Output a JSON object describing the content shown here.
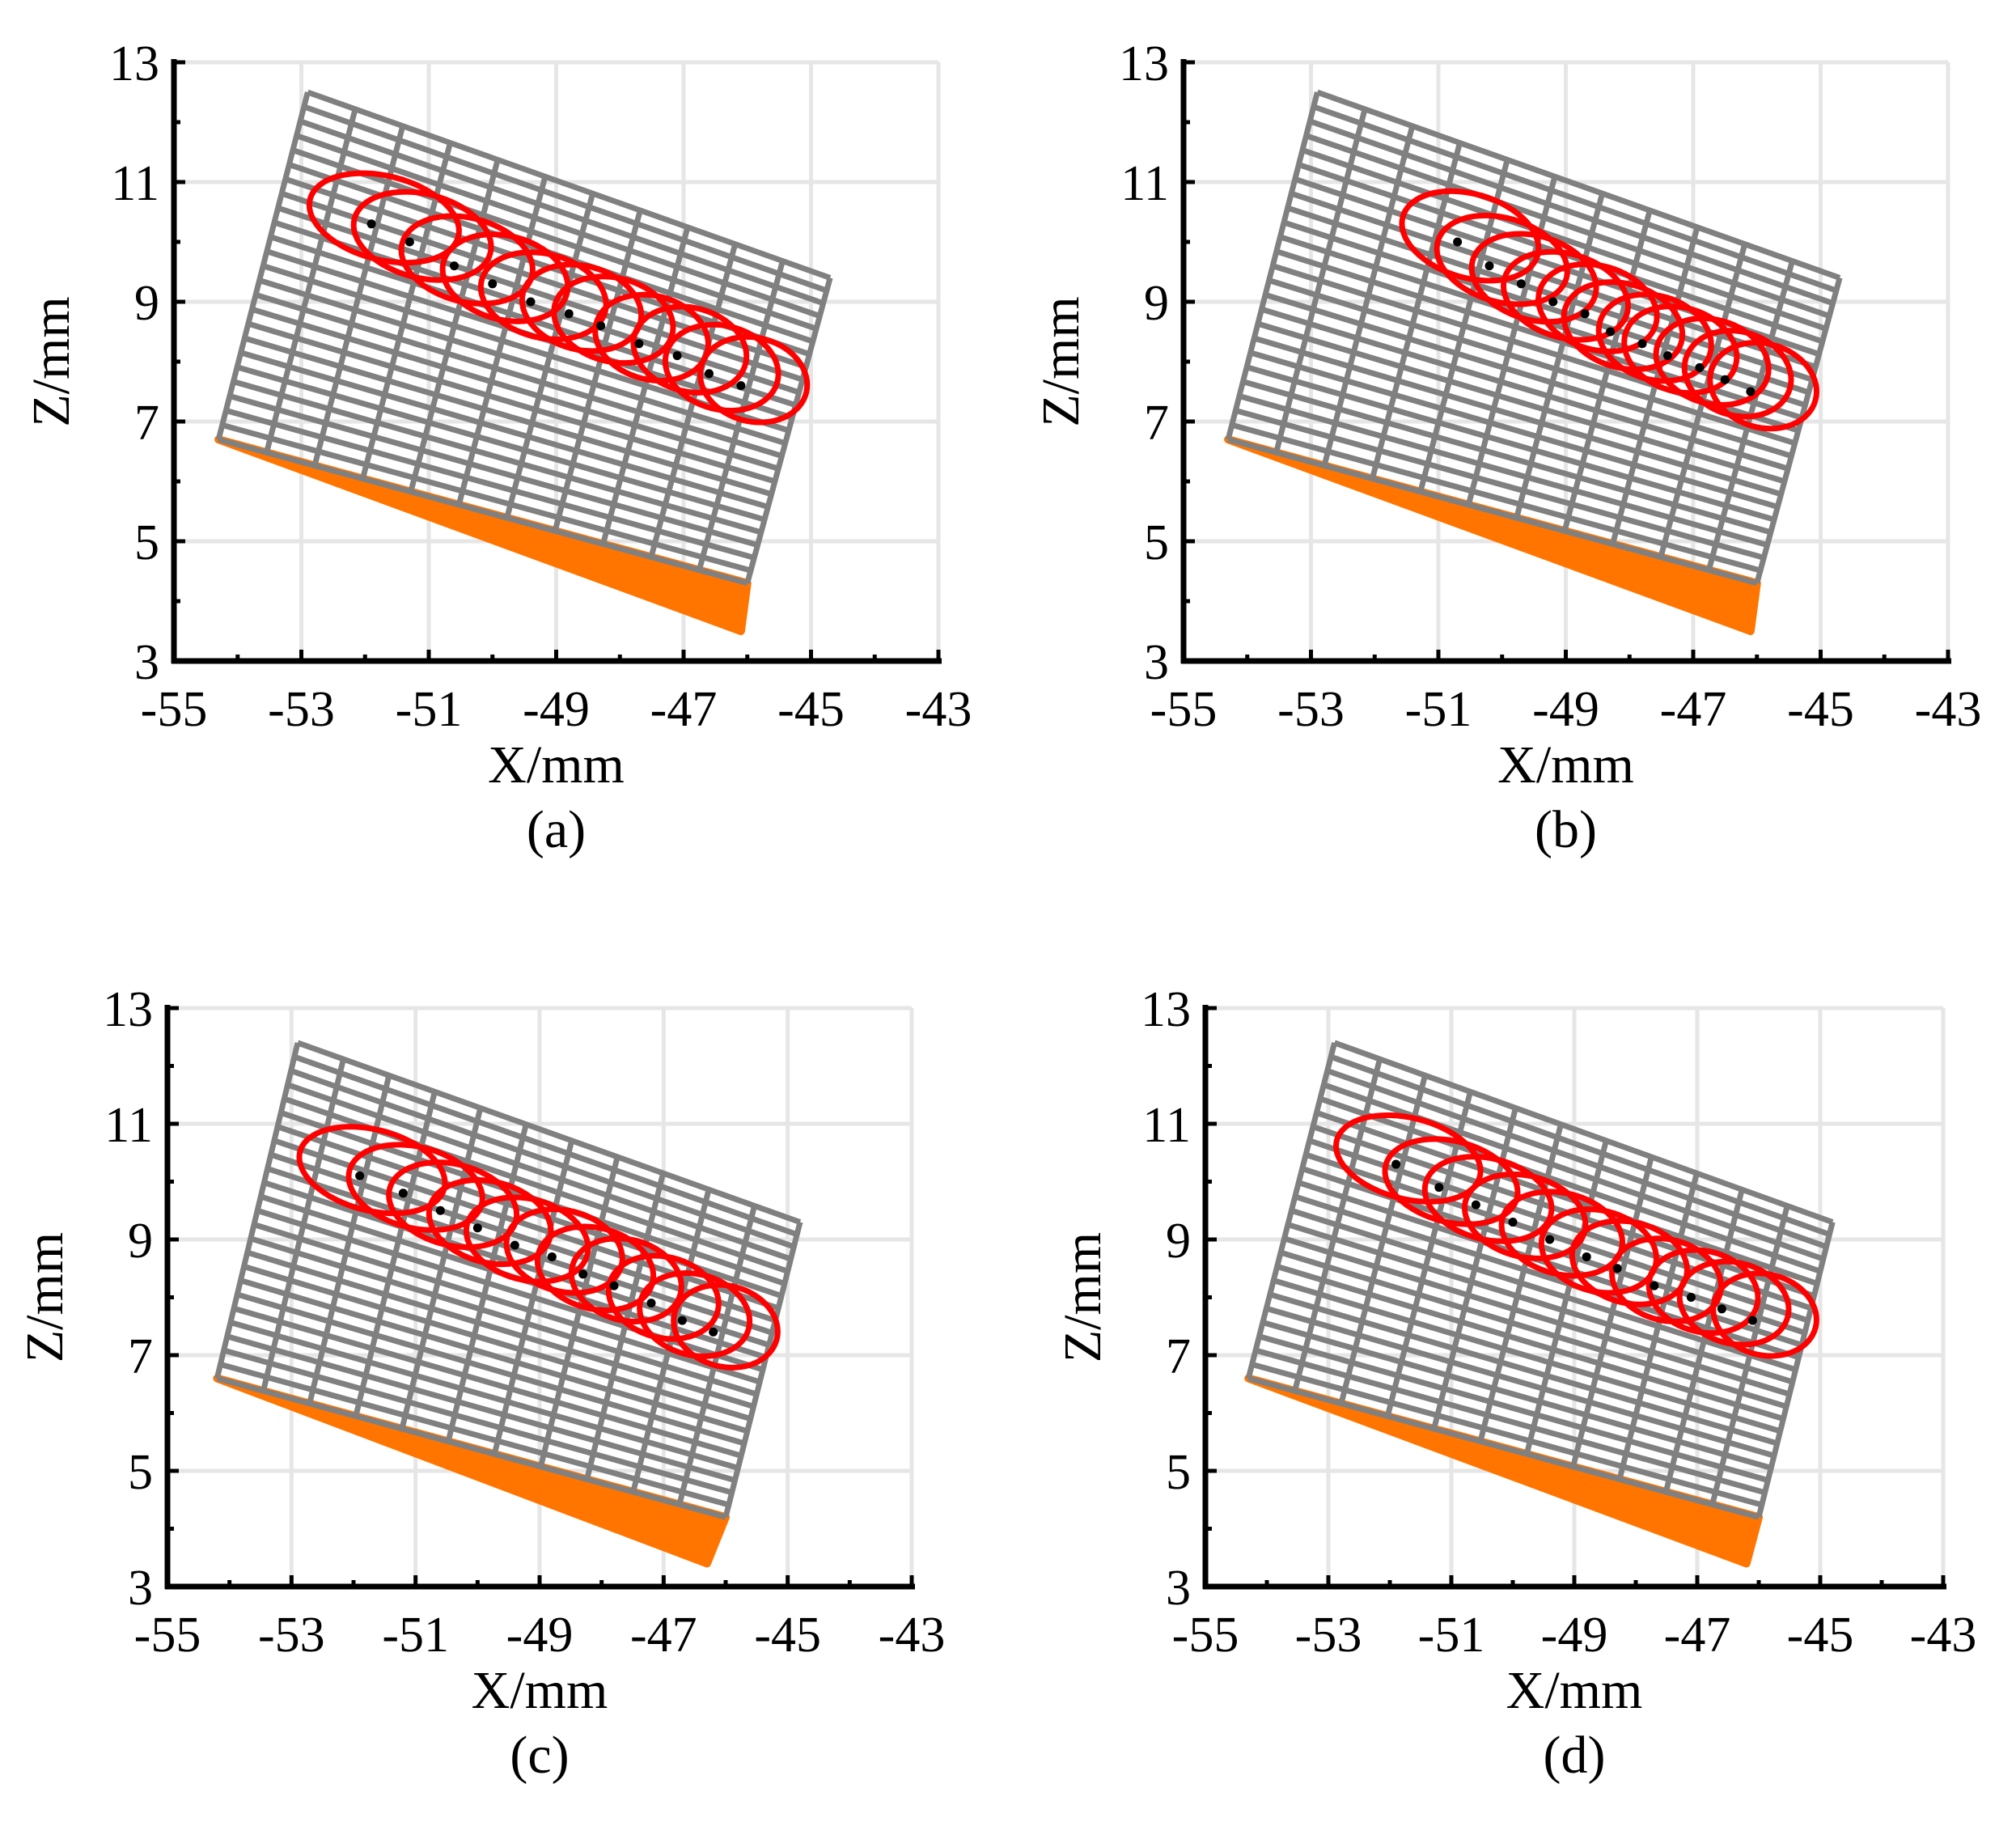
{
  "figure": {
    "colors": {
      "grid": "#e6e6e6",
      "mesh": "#808080",
      "ellipse": "#ff0000",
      "substrate": "#ff7500",
      "point": "#000000",
      "axis": "#000000"
    }
  },
  "chart_data": [
    {
      "panel": "a",
      "type": "scatter",
      "caption": "(a)",
      "xlabel": "X/mm",
      "ylabel": "Z/mm",
      "xlim": [
        -55,
        -43
      ],
      "ylim": [
        3,
        13
      ],
      "xticks": [
        "-55",
        "-53",
        "-51",
        "-49",
        "-47",
        "-45",
        "-43"
      ],
      "yticks": [
        "3",
        "5",
        "7",
        "9",
        "11",
        "13"
      ],
      "grid": true,
      "mesh": {
        "corners": [
          [
            -52.9,
            12.5
          ],
          [
            -44.7,
            9.4
          ],
          [
            -46.0,
            4.3
          ],
          [
            -54.3,
            6.7
          ]
        ],
        "rows": 24,
        "cols": 11
      },
      "substrate": [
        [
          -54.3,
          6.7
        ],
        [
          -46.0,
          4.3
        ],
        [
          -46.1,
          3.5
        ]
      ],
      "series": [
        {
          "name": "ellipse centers",
          "x": [
            -51.9,
            -51.3,
            -50.6,
            -50.0,
            -49.4,
            -48.8,
            -48.3,
            -47.7,
            -47.1,
            -46.6,
            -46.1
          ],
          "y": [
            10.3,
            10.0,
            9.6,
            9.3,
            9.0,
            8.8,
            8.6,
            8.3,
            8.1,
            7.8,
            7.6
          ]
        }
      ],
      "ellipses": {
        "rx": [
          1.2,
          1.1,
          1.05,
          1.0,
          1.0,
          0.95,
          0.95,
          0.9,
          0.9,
          0.9,
          0.85
        ],
        "ry": 0.7,
        "offset": [
          0.2,
          0.1
        ]
      }
    },
    {
      "panel": "b",
      "type": "scatter",
      "caption": "(b)",
      "xlabel": "X/mm",
      "ylabel": "Z/mm",
      "xlim": [
        -55,
        -43
      ],
      "ylim": [
        3,
        13
      ],
      "xticks": [
        "-55",
        "-53",
        "-51",
        "-49",
        "-47",
        "-45",
        "-43"
      ],
      "yticks": [
        "3",
        "5",
        "7",
        "9",
        "11",
        "13"
      ],
      "grid": true,
      "mesh": {
        "corners": [
          [
            -52.9,
            12.5
          ],
          [
            -44.7,
            9.4
          ],
          [
            -46.0,
            4.3
          ],
          [
            -54.3,
            6.7
          ]
        ],
        "rows": 24,
        "cols": 11
      },
      "substrate": [
        [
          -54.3,
          6.7
        ],
        [
          -46.0,
          4.3
        ],
        [
          -46.1,
          3.5
        ]
      ],
      "series": [
        {
          "name": "ellipse centers",
          "x": [
            -50.7,
            -50.2,
            -49.7,
            -49.2,
            -48.7,
            -48.3,
            -47.8,
            -47.4,
            -46.9,
            -46.5,
            -46.1
          ],
          "y": [
            10.0,
            9.6,
            9.3,
            9.0,
            8.8,
            8.5,
            8.3,
            8.1,
            7.9,
            7.7,
            7.5
          ]
        }
      ],
      "ellipses": {
        "rx": [
          1.1,
          1.05,
          1.0,
          1.0,
          0.95,
          0.95,
          0.9,
          0.9,
          0.9,
          0.85,
          0.85
        ],
        "ry": 0.7,
        "offset": [
          0.2,
          0.1
        ]
      }
    },
    {
      "panel": "c",
      "type": "scatter",
      "caption": "(c)",
      "xlabel": "X/mm",
      "ylabel": "Z/mm",
      "xlim": [
        -55,
        -43
      ],
      "ylim": [
        3,
        13
      ],
      "xticks": [
        "-55",
        "-53",
        "-51",
        "-49",
        "-47",
        "-45",
        "-43"
      ],
      "yticks": [
        "3",
        "5",
        "7",
        "9",
        "11",
        "13"
      ],
      "grid": true,
      "mesh": {
        "corners": [
          [
            -52.9,
            12.4
          ],
          [
            -44.8,
            9.3
          ],
          [
            -46.0,
            4.2
          ],
          [
            -54.2,
            6.6
          ]
        ],
        "rows": 24,
        "cols": 11
      },
      "substrate": [
        [
          -54.2,
          6.6
        ],
        [
          -46.0,
          4.2
        ],
        [
          -46.3,
          3.4
        ]
      ],
      "series": [
        {
          "name": "ellipse centers",
          "x": [
            -51.9,
            -51.2,
            -50.6,
            -50.0,
            -49.4,
            -48.8,
            -48.3,
            -47.8,
            -47.2,
            -46.7,
            -46.2
          ],
          "y": [
            10.1,
            9.8,
            9.5,
            9.2,
            8.9,
            8.7,
            8.4,
            8.2,
            7.9,
            7.6,
            7.4
          ]
        }
      ],
      "ellipses": {
        "rx": [
          1.2,
          1.1,
          1.05,
          1.0,
          1.0,
          0.95,
          0.95,
          0.9,
          0.9,
          0.9,
          0.85
        ],
        "ry": 0.7,
        "offset": [
          0.2,
          0.1
        ]
      }
    },
    {
      "panel": "d",
      "type": "scatter",
      "caption": "(d)",
      "xlabel": "X/mm",
      "ylabel": "Z/mm",
      "xlim": [
        -55,
        -43
      ],
      "ylim": [
        3,
        13
      ],
      "xticks": [
        "-55",
        "-53",
        "-51",
        "-49",
        "-47",
        "-45",
        "-43"
      ],
      "yticks": [
        "3",
        "5",
        "7",
        "9",
        "11",
        "13"
      ],
      "grid": true,
      "mesh": {
        "corners": [
          [
            -52.9,
            12.4
          ],
          [
            -44.8,
            9.3
          ],
          [
            -46.0,
            4.2
          ],
          [
            -54.3,
            6.6
          ]
        ],
        "rows": 24,
        "cols": 11
      },
      "substrate": [
        [
          -54.3,
          6.6
        ],
        [
          -46.0,
          4.2
        ],
        [
          -46.2,
          3.4
        ]
      ],
      "series": [
        {
          "name": "ellipse centers",
          "x": [
            -51.9,
            -51.2,
            -50.6,
            -50.0,
            -49.4,
            -48.8,
            -48.3,
            -47.7,
            -47.1,
            -46.6,
            -46.1
          ],
          "y": [
            10.3,
            9.9,
            9.6,
            9.3,
            9.0,
            8.7,
            8.5,
            8.2,
            8.0,
            7.8,
            7.6
          ]
        }
      ],
      "ellipses": {
        "rx": [
          1.2,
          1.1,
          1.05,
          1.0,
          1.0,
          0.95,
          0.95,
          0.9,
          0.9,
          0.9,
          0.85
        ],
        "ry": 0.7,
        "offset": [
          0.2,
          0.1
        ]
      }
    }
  ]
}
